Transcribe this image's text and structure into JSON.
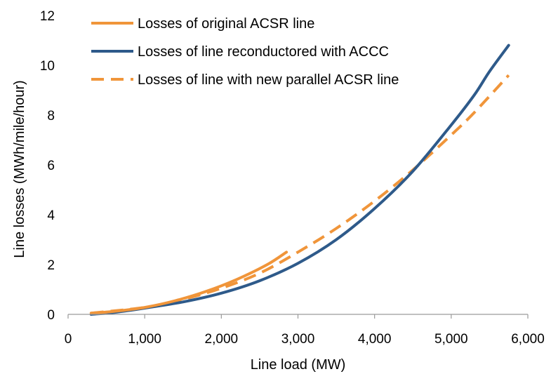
{
  "chart_data": {
    "type": "line",
    "title": "",
    "xlabel": "Line load (MW)",
    "ylabel": "Line losses (MWh/mile/hour)",
    "xlim": [
      0,
      6000
    ],
    "ylim": [
      0,
      12
    ],
    "x_ticks": [
      "0",
      "1,000",
      "2,000",
      "3,000",
      "4,000",
      "5,000",
      "6,000"
    ],
    "y_ticks": [
      "0",
      "2",
      "4",
      "6",
      "8",
      "10",
      "12"
    ],
    "grid": false,
    "legend_position": "top-left",
    "series": [
      {
        "name": "Losses of original ACSR line",
        "color": "#F0953A",
        "dash": "solid",
        "x": [
          300,
          600,
          1000,
          1400,
          1800,
          2200,
          2600,
          2850
        ],
        "y": [
          0.05,
          0.12,
          0.28,
          0.55,
          0.92,
          1.4,
          2.0,
          2.5
        ]
      },
      {
        "name": "Losses of line reconductored with ACCC",
        "color": "#2E5A8A",
        "dash": "solid",
        "x": [
          300,
          600,
          1000,
          1500,
          2000,
          2500,
          3000,
          3500,
          4000,
          4500,
          5000,
          5300,
          5500,
          5750
        ],
        "y": [
          0.0,
          0.08,
          0.25,
          0.5,
          0.85,
          1.35,
          2.05,
          3.0,
          4.25,
          5.75,
          7.6,
          8.8,
          9.75,
          10.8
        ]
      },
      {
        "name": "Losses of line with new parallel ACSR line",
        "color": "#F0953A",
        "dash": "dashed",
        "x": [
          300,
          1000,
          1500,
          2000,
          2500,
          3000,
          3500,
          4000,
          4500,
          5000,
          5300,
          5750
        ],
        "y": [
          0.05,
          0.28,
          0.6,
          1.05,
          1.65,
          2.5,
          3.45,
          4.55,
          5.8,
          7.2,
          8.1,
          9.6
        ]
      }
    ]
  }
}
